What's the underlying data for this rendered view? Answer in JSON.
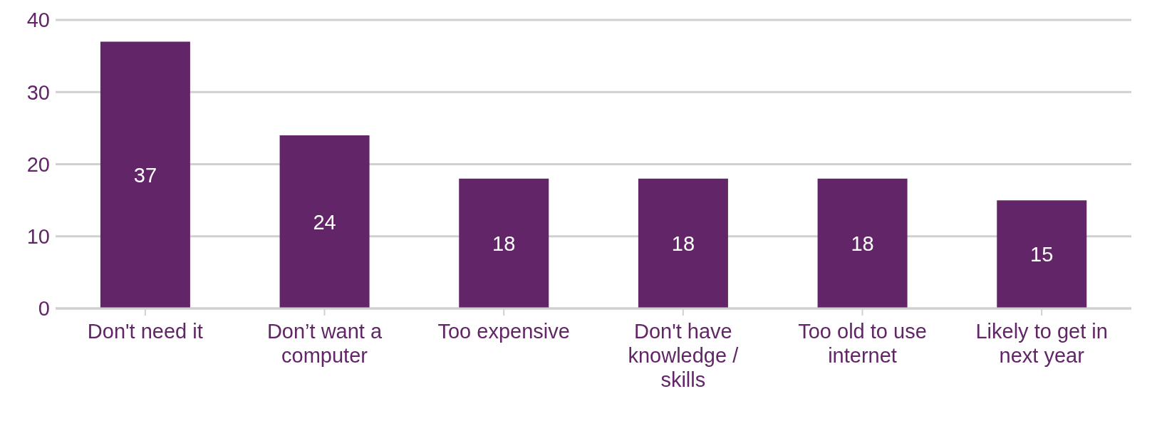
{
  "chart_data": {
    "type": "bar",
    "categories": [
      "Don't need it",
      "Don’t want a computer",
      "Too expensive",
      "Don't have knowledge / skills",
      "Too old to use internet",
      "Likely to get in next year"
    ],
    "values": [
      37,
      24,
      18,
      18,
      18,
      15
    ],
    "color": "#622567",
    "ylim": [
      0,
      40
    ],
    "yticks": [
      0,
      10,
      20,
      30,
      40
    ],
    "grid": "y",
    "data_labels": true
  }
}
